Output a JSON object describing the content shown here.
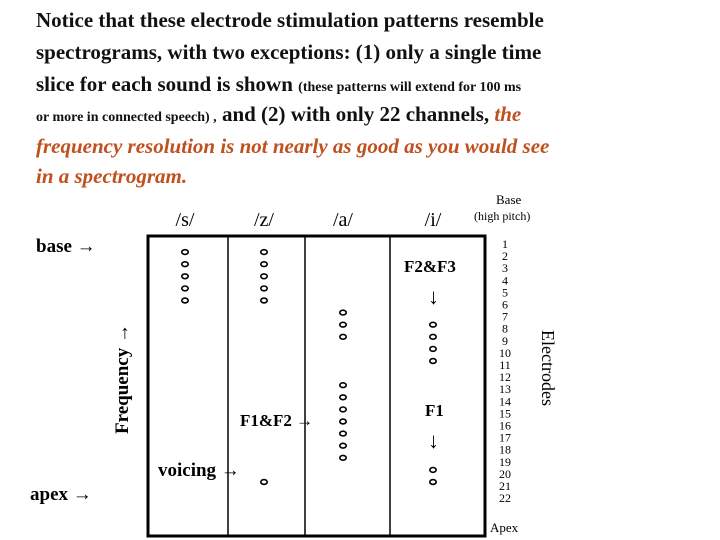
{
  "text": [
    "Notice that these electrode stimulation patterns resemble",
    "spectrograms, with two exceptions: (1) only a single time",
    "slice for each sound is shown",
    "(these patterns will extend for 100 ms",
    "or more in connected speech) ,",
    "and (2) with only 22 channels,",
    "the",
    "frequency resolution is not nearly as good as you would see",
    "in a spectrogram."
  ],
  "diagram": {
    "base": "Base",
    "base_note": "(high pitch)",
    "apex": "Apex",
    "electrodes_label": "Electrodes",
    "electrode_numbers": [
      "1",
      "2",
      "3",
      "4",
      "5",
      "6",
      "7",
      "8",
      "9",
      "10",
      "11",
      "12",
      "13",
      "14",
      "15",
      "16",
      "17",
      "18",
      "19",
      "20",
      "21",
      "22"
    ],
    "annotations": {
      "base": "base →",
      "apex": "apex →",
      "frequency": "Frequency →",
      "f2f3": "F2&F3",
      "f2f3_arrow": "↓",
      "f1f2": "F1&F2 →",
      "f1": "F1",
      "f1_arrow": "↓",
      "voicing": "voicing →"
    },
    "patterns": [
      {
        "label": "/s/",
        "electrodes": [
          2,
          3,
          4,
          5,
          6
        ]
      },
      {
        "label": "/z/",
        "electrodes": [
          2,
          3,
          4,
          5,
          6,
          21
        ]
      },
      {
        "label": "/a/",
        "electrodes": [
          7,
          8,
          9,
          13,
          14,
          15,
          16,
          17,
          18,
          19
        ]
      },
      {
        "label": "/i/",
        "electrodes": [
          8,
          9,
          10,
          11,
          20,
          21
        ]
      }
    ]
  }
}
